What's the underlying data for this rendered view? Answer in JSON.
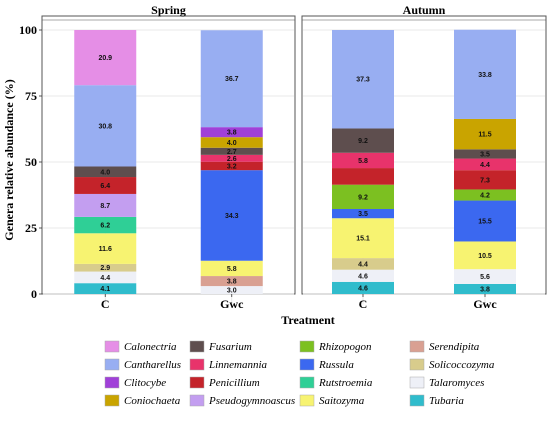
{
  "chart_data": {
    "type": "bar",
    "stacked": true,
    "ylabel": "Genera relative abundance (%)",
    "xlabel": "Treatment",
    "ylim": [
      0,
      100
    ],
    "yticks": [
      0,
      25,
      50,
      75,
      100
    ],
    "grid": true,
    "legend_position": "bottom",
    "legend": [
      {
        "name": "Calonectria",
        "color": "#e58ee6"
      },
      {
        "name": "Cantharellus",
        "color": "#98aef2"
      },
      {
        "name": "Clitocybe",
        "color": "#a040d8"
      },
      {
        "name": "Coniochaeta",
        "color": "#c9a400"
      },
      {
        "name": "Fusarium",
        "color": "#5e4e4e"
      },
      {
        "name": "Linnemannia",
        "color": "#e8336b"
      },
      {
        "name": "Penicillium",
        "color": "#c4232a"
      },
      {
        "name": "Pseudogymnoascus",
        "color": "#c39ef0"
      },
      {
        "name": "Rhizopogon",
        "color": "#7cc021"
      },
      {
        "name": "Russula",
        "color": "#3b68f0"
      },
      {
        "name": "Rutstroemia",
        "color": "#2fcf96"
      },
      {
        "name": "Saitozyma",
        "color": "#f7f371"
      },
      {
        "name": "Serendipita",
        "color": "#d9a092"
      },
      {
        "name": "Solicoccozyma",
        "color": "#d8cc8c"
      },
      {
        "name": "Talaromyces",
        "color": "#eef0f7"
      },
      {
        "name": "Tubaria",
        "color": "#30bccc"
      }
    ],
    "panels": [
      {
        "title": "Spring",
        "bars": [
          {
            "category": "C",
            "segments": [
              {
                "genus": "Tubaria",
                "value": 4.1,
                "label": "4.1"
              },
              {
                "genus": "Talaromyces",
                "value": 4.4,
                "label": "4.4"
              },
              {
                "genus": "Solicoccozyma",
                "value": 2.9,
                "label": "2.9"
              },
              {
                "genus": "Saitozyma",
                "value": 11.6,
                "label": "11.6"
              },
              {
                "genus": "Rutstroemia",
                "value": 6.2,
                "label": "6.2"
              },
              {
                "genus": "Pseudogymnoascus",
                "value": 8.7,
                "label": "8.7"
              },
              {
                "genus": "Penicillium",
                "value": 6.4,
                "label": "6.4"
              },
              {
                "genus": "Fusarium",
                "value": 4.0,
                "label": "4.0"
              },
              {
                "genus": "Cantharellus",
                "value": 30.8,
                "label": "30.8"
              },
              {
                "genus": "Calonectria",
                "value": 20.9,
                "label": "20.9"
              }
            ]
          },
          {
            "category": "Gwc",
            "segments": [
              {
                "genus": "Talaromyces",
                "value": 3.0,
                "label": "3.0"
              },
              {
                "genus": "Serendipita",
                "value": 3.8,
                "label": "3.8"
              },
              {
                "genus": "Saitozyma",
                "value": 5.8,
                "label": "5.8"
              },
              {
                "genus": "Russula",
                "value": 34.3,
                "label": "34.3"
              },
              {
                "genus": "Penicillium",
                "value": 3.2,
                "label": "3.2"
              },
              {
                "genus": "Linnemannia",
                "value": 2.6,
                "label": "2.6"
              },
              {
                "genus": "Fusarium",
                "value": 2.7,
                "label": "2.7"
              },
              {
                "genus": "Coniochaeta",
                "value": 4.0,
                "label": "4.0"
              },
              {
                "genus": "Clitocybe",
                "value": 3.8,
                "label": "3.8"
              },
              {
                "genus": "Cantharellus",
                "value": 36.7,
                "label": "36.7"
              }
            ]
          }
        ]
      },
      {
        "title": "Autumn",
        "bars": [
          {
            "category": "C",
            "segments": [
              {
                "genus": "Tubaria",
                "value": 4.6,
                "label": "4.6"
              },
              {
                "genus": "Talaromyces",
                "value": 4.6,
                "label": "4.6"
              },
              {
                "genus": "Solicoccozyma",
                "value": 4.4,
                "label": "4.4"
              },
              {
                "genus": "Saitozyma",
                "value": 15.1,
                "label": "15.1"
              },
              {
                "genus": "Russula",
                "value": 3.5,
                "label": "3.5"
              },
              {
                "genus": "Rhizopogon",
                "value": 9.2,
                "label": "9.2"
              },
              {
                "genus": "Penicillium",
                "value": 6.3,
                "label": ""
              },
              {
                "genus": "Linnemannia",
                "value": 5.8,
                "label": "5.8"
              },
              {
                "genus": "Fusarium",
                "value": 9.2,
                "label": "9.2"
              },
              {
                "genus": "Cantharellus",
                "value": 37.3,
                "label": "37.3"
              }
            ]
          },
          {
            "category": "Gwc",
            "segments": [
              {
                "genus": "Tubaria",
                "value": 3.8,
                "label": "3.8"
              },
              {
                "genus": "Talaromyces",
                "value": 5.6,
                "label": "5.6"
              },
              {
                "genus": "Saitozyma",
                "value": 10.5,
                "label": "10.5"
              },
              {
                "genus": "Russula",
                "value": 15.5,
                "label": "15.5"
              },
              {
                "genus": "Rhizopogon",
                "value": 4.2,
                "label": "4.2"
              },
              {
                "genus": "Penicillium",
                "value": 7.3,
                "label": "7.3"
              },
              {
                "genus": "Linnemannia",
                "value": 4.4,
                "label": "4.4"
              },
              {
                "genus": "Fusarium",
                "value": 3.5,
                "label": "3.5"
              },
              {
                "genus": "Coniochaeta",
                "value": 11.5,
                "label": "11.5"
              },
              {
                "genus": "Cantharellus",
                "value": 33.8,
                "label": "33.8"
              }
            ]
          }
        ]
      }
    ]
  }
}
